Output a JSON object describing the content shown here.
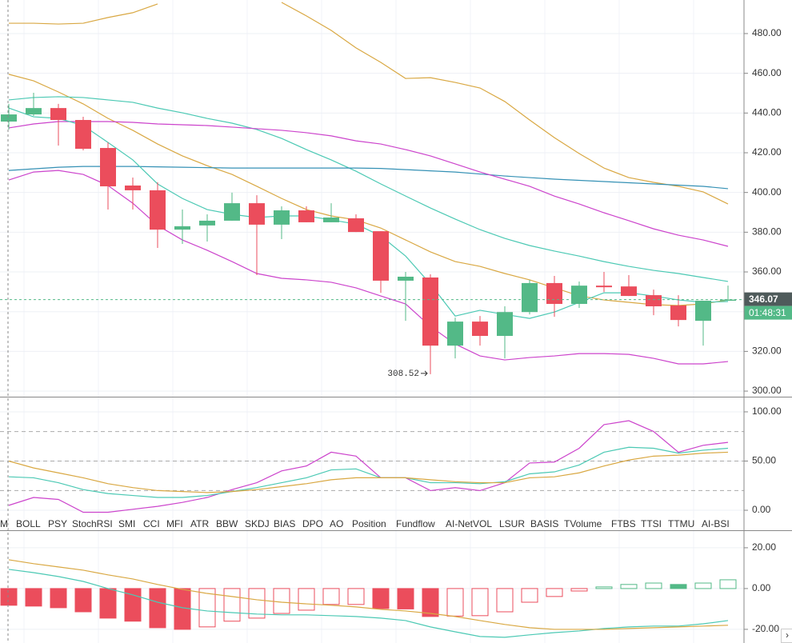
{
  "chart_data": [
    {
      "type": "candlestick",
      "up_color": "#53b987",
      "down_color": "#eb4d5c",
      "open": [
        435.7,
        439.3,
        442.5,
        436.5,
        422.4,
        403.5,
        401.1,
        381.3,
        383.4,
        385.8,
        394.6,
        383.8,
        391.0,
        385.0,
        387.0,
        380.5,
        355.6,
        357.2,
        322.9,
        335.0,
        327.8,
        339.8,
        354.4,
        343.9,
        353.1,
        352.7,
        348.3,
        343.1,
        335.4,
        345.5
      ],
      "high": [
        444.6,
        450.2,
        444.6,
        438.1,
        425.2,
        407.5,
        405.1,
        391.4,
        389.0,
        399.9,
        398.6,
        393.0,
        393.0,
        394.6,
        389.0,
        380.5,
        360.0,
        358.8,
        337.0,
        337.8,
        342.7,
        356.0,
        358.0,
        355.2,
        360.0,
        358.4,
        351.1,
        348.3,
        345.5,
        353.1
      ],
      "low": [
        431.7,
        438.5,
        423.6,
        421.2,
        391.4,
        391.4,
        372.1,
        374.1,
        375.3,
        385.8,
        358.4,
        376.5,
        385.0,
        385.0,
        380.1,
        349.5,
        335.4,
        308.52,
        316.5,
        322.9,
        316.5,
        338.6,
        337.4,
        341.9,
        349.9,
        347.9,
        338.2,
        332.6,
        322.9,
        345.5
      ],
      "close": [
        439.3,
        442.5,
        436.5,
        422.0,
        403.1,
        401.1,
        381.3,
        383.0,
        385.8,
        394.6,
        383.8,
        391.0,
        385.0,
        387.4,
        380.1,
        355.6,
        357.6,
        322.9,
        335.0,
        327.8,
        339.8,
        354.4,
        343.9,
        353.1,
        352.3,
        347.9,
        342.7,
        335.8,
        345.5,
        346.07
      ],
      "lines": [
        {
          "color": "#d9a843",
          "values": [
            485.2,
            485.2,
            484.8,
            485.2,
            488.1,
            490.5,
            494.9,
            null,
            null,
            null,
            null,
            495.7,
            488.9,
            481.6,
            472.8,
            465.5,
            457.4,
            457.8,
            455.4,
            452.6,
            445.8,
            436.5,
            427.6,
            419.6,
            412.3,
            407.5,
            405.1,
            403.1,
            400.3,
            394.2
          ]
        },
        {
          "color": "#d9a843",
          "values": [
            459.5,
            456.2,
            450.6,
            444.6,
            437.3,
            431.3,
            424.4,
            418.4,
            413.5,
            409.1,
            403.1,
            397.0,
            391.4,
            388.2,
            386.2,
            382.1,
            376.1,
            370.1,
            365.2,
            362.8,
            359.2,
            356.0,
            352.0,
            348.0,
            345.9,
            344.7,
            343.5,
            343.1,
            343.9,
            345.9
          ]
        },
        {
          "color": "#4cc9b4",
          "values": [
            446.6,
            447.8,
            448.2,
            447.8,
            446.6,
            445.4,
            442.5,
            440.1,
            437.3,
            434.9,
            431.7,
            427.2,
            421.6,
            416.4,
            410.7,
            404.3,
            398.2,
            392.2,
            386.6,
            381.3,
            376.9,
            373.3,
            370.5,
            368.0,
            365.2,
            362.8,
            360.8,
            359.2,
            357.2,
            355.2
          ]
        },
        {
          "color": "#3591b5",
          "values": [
            411.1,
            411.9,
            412.7,
            413.1,
            413.1,
            413.1,
            412.9,
            412.7,
            412.5,
            412.3,
            412.3,
            412.3,
            412.3,
            412.3,
            412.3,
            412.1,
            411.5,
            410.9,
            410.3,
            409.3,
            408.3,
            407.5,
            406.7,
            406.1,
            405.5,
            404.9,
            404.3,
            403.7,
            403.1,
            401.9
          ]
        },
        {
          "color": "#cc44cc",
          "values": [
            432.5,
            434.5,
            435.7,
            435.7,
            435.7,
            435.3,
            434.5,
            434.1,
            433.7,
            432.9,
            432.1,
            431.3,
            430.1,
            428.5,
            426.0,
            424.4,
            421.6,
            418.4,
            414.4,
            410.3,
            406.7,
            403.1,
            398.2,
            394.2,
            389.8,
            385.8,
            381.7,
            378.5,
            376.1,
            372.9
          ]
        },
        {
          "color": "#4cc9b4",
          "values": [
            442.5,
            438.1,
            437.3,
            433.7,
            425.2,
            416.4,
            404.3,
            397.0,
            391.4,
            389.0,
            387.4,
            388.2,
            388.2,
            386.2,
            384.1,
            378.1,
            368.0,
            353.9,
            337.8,
            340.7,
            338.6,
            336.6,
            339.8,
            344.7,
            349.5,
            349.5,
            347.9,
            345.9,
            344.7,
            345.1
          ]
        },
        {
          "color": "#cc44cc",
          "values": [
            406.3,
            410.3,
            411.1,
            409.1,
            403.5,
            394.6,
            383.4,
            376.1,
            370.9,
            365.2,
            359.2,
            356.8,
            356.0,
            354.8,
            352.0,
            347.9,
            343.9,
            332.6,
            323.7,
            317.7,
            315.7,
            316.9,
            317.7,
            318.9,
            318.9,
            318.5,
            316.5,
            313.7,
            313.7,
            314.9
          ]
        }
      ],
      "ylim": [
        297.2,
        496.9
      ],
      "yticks": [
        {
          "value": 300,
          "label": "300.00"
        },
        {
          "value": 320,
          "label": "320.00"
        },
        {
          "value": 340,
          "label": "340.00"
        },
        {
          "value": 360,
          "label": "360.00"
        },
        {
          "value": 380,
          "label": "380.00"
        },
        {
          "value": 400,
          "label": "400.00"
        },
        {
          "value": 420,
          "label": "420.00"
        },
        {
          "value": 440,
          "label": "440.00"
        },
        {
          "value": 460,
          "label": "460.00"
        },
        {
          "value": 480,
          "label": "480.00"
        }
      ],
      "grid": true,
      "countdown": "01:48:31"
    },
    {
      "type": "line",
      "series": [
        {
          "color": "#cc44cc",
          "values": [
            5,
            13,
            11,
            -2,
            -2,
            1,
            4,
            8,
            13,
            21,
            28,
            40,
            45,
            59,
            55,
            33,
            33,
            20,
            23,
            20,
            28,
            48,
            49,
            63,
            87,
            91,
            80,
            59,
            66,
            69
          ]
        },
        {
          "color": "#4cc9b4",
          "values": [
            34,
            33,
            28,
            21,
            17,
            15,
            13,
            13,
            15,
            19,
            23,
            28,
            33,
            41,
            42,
            33,
            33,
            28,
            28,
            27,
            29,
            37,
            39,
            46,
            59,
            64,
            63,
            58,
            61,
            63
          ]
        },
        {
          "color": "#d9a843",
          "values": [
            50,
            43,
            38,
            33,
            27,
            23,
            20,
            19,
            18,
            19,
            21,
            24,
            27,
            31,
            33,
            33,
            33,
            31,
            29,
            28,
            28,
            33,
            34,
            38,
            45,
            51,
            55,
            56,
            58,
            59
          ]
        }
      ],
      "levels": [
        80,
        50,
        20
      ],
      "ylim": [
        -20.3,
        114.6
      ],
      "yticks": [
        {
          "value": 0,
          "label": "0.00"
        },
        {
          "value": 50,
          "label": "50.00"
        },
        {
          "value": 100,
          "label": "100.00"
        }
      ]
    },
    {
      "type": "histogram",
      "up_color": "#53b987",
      "down_color": "#eb4d5c",
      "values": [
        -8.2,
        -8.6,
        -9.4,
        -11.4,
        -14.5,
        -16,
        -19.2,
        -20,
        -18.8,
        -16,
        -14.5,
        -12.2,
        -10.6,
        -7.8,
        -7.8,
        -9.8,
        -10,
        -13.7,
        -13.5,
        -13.3,
        -11.4,
        -6.7,
        -3.9,
        -1.2,
        0.8,
        2,
        2.7,
        2,
        2.7,
        4.3
      ],
      "series": [
        {
          "color": "#4cc9b4",
          "values": [
            9.4,
            7.8,
            5.9,
            3.5,
            0,
            -3.1,
            -6.7,
            -9.4,
            -11,
            -11.8,
            -12.5,
            -12.9,
            -12.9,
            -13.3,
            -13.7,
            -14.5,
            -15.7,
            -18.8,
            -21.2,
            -23.5,
            -23.9,
            -22.7,
            -21.6,
            -20.8,
            -19.6,
            -18.8,
            -18.4,
            -18.4,
            -17.3,
            -15.7
          ]
        },
        {
          "color": "#d9a843",
          "values": [
            14.1,
            12.2,
            10.6,
            9.0,
            6.7,
            4.7,
            2.0,
            -0.4,
            -2.4,
            -3.9,
            -5.5,
            -6.7,
            -7.5,
            -8.2,
            -9.0,
            -10.2,
            -11.0,
            -12.2,
            -13.7,
            -15.7,
            -17.6,
            -19.2,
            -20.0,
            -20.0,
            -20.0,
            -19.6,
            -19.2,
            -18.8,
            -18.4,
            -18.0
          ]
        }
      ],
      "ylim": [
        -26.7,
        28.2
      ],
      "yticks": [
        {
          "value": -20,
          "label": "-20.00"
        },
        {
          "value": 0,
          "label": "0.00"
        },
        {
          "value": 20,
          "label": "20.00"
        }
      ]
    }
  ],
  "indicator_tabs": [
    "M",
    "BOLL",
    "PSY",
    "StochRSI",
    "SMI",
    "CCI",
    "MFI",
    "ATR",
    "BBW",
    "SKDJ",
    "BIAS",
    "DPO",
    "AO",
    "Position",
    "Fundflow",
    "AI-NetVOL",
    "LSUR",
    "BASIS",
    "TVolume",
    "FTBS",
    "TTSI",
    "TTMU",
    "AI-BSI"
  ],
  "nav_arrow": "›"
}
